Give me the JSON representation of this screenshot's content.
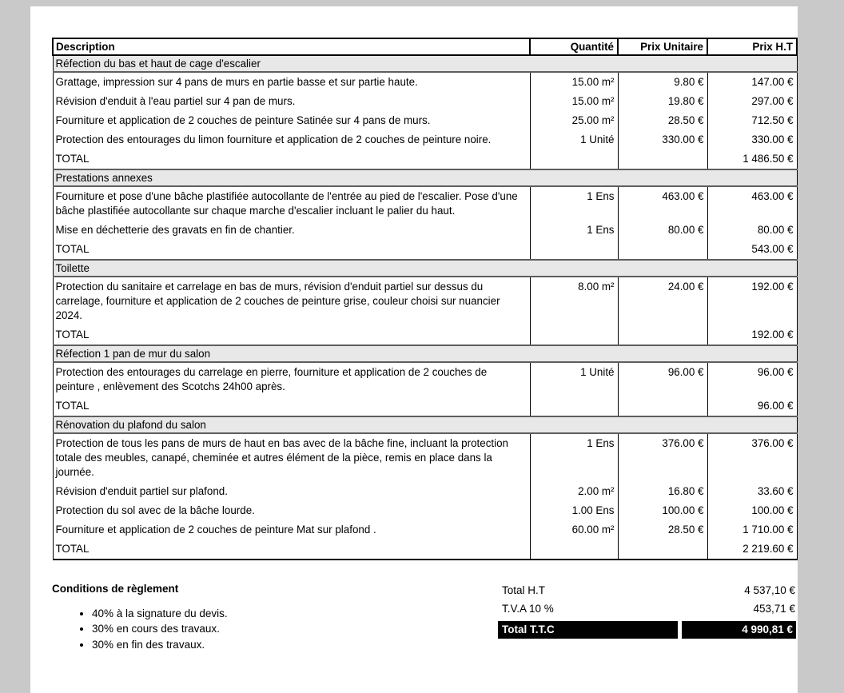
{
  "table": {
    "headers": [
      "Description",
      "Quantité",
      "Prix Unitaire",
      "Prix H.T"
    ],
    "sections": [
      {
        "title": "Réfection du bas et haut de cage d'escalier",
        "rows": [
          {
            "desc": "Grattage, impression sur 4 pans de murs en partie basse et sur partie haute.",
            "qty": "15.00 m²",
            "pu": "9.80 €",
            "ht": "147.00 €"
          },
          {
            "desc": "Révision d'enduit à l'eau partiel sur 4 pan de murs.",
            "qty": "15.00 m²",
            "pu": "19.80 €",
            "ht": "297.00 €"
          },
          {
            "desc": "Fourniture et application de 2 couches de peinture Satinée sur 4 pans de murs.",
            "qty": "25.00 m²",
            "pu": "28.50 €",
            "ht": "712.50 €"
          },
          {
            "desc": "Protection des entourages du limon fourniture et application de 2 couches de peinture noire.",
            "qty": "1 Unité",
            "pu": "330.00 €",
            "ht": "330.00 €"
          }
        ],
        "total_label": "TOTAL",
        "total_value": "1 486.50 €"
      },
      {
        "title": "Prestations annexes",
        "rows": [
          {
            "desc": "Fourniture et pose d'une bâche plastifiée autocollante de l'entrée au pied de l'escalier. Pose d'une bâche plastifiée autocollante sur chaque marche d'escalier incluant le palier du haut.",
            "qty": "1 Ens",
            "pu": "463.00 €",
            "ht": "463.00 €"
          },
          {
            "desc": "Mise en déchetterie des gravats en fin de chantier.",
            "qty": "1 Ens",
            "pu": "80.00 €",
            "ht": "80.00 €"
          }
        ],
        "total_label": "TOTAL",
        "total_value": "543.00 €"
      },
      {
        "title": "Toilette",
        "rows": [
          {
            "desc": "Protection du sanitaire et carrelage en bas de murs, révision d'enduit partiel sur dessus du carrelage, fourniture et application de 2 couches de peinture grise, couleur choisi sur nuancier 2024.",
            "qty": "8.00 m²",
            "pu": "24.00 €",
            "ht": "192.00 €"
          }
        ],
        "total_label": "TOTAL",
        "total_value": "192.00 €"
      },
      {
        "title": "Réfection 1 pan de mur du salon",
        "rows": [
          {
            "desc": "Protection des entourages du carrelage en pierre, fourniture et application de 2 couches de peinture , enlèvement des Scotchs 24h00 après.",
            "qty": "1 Unité",
            "pu": "96.00 €",
            "ht": "96.00 €"
          }
        ],
        "total_label": "TOTAL",
        "total_value": "96.00 €"
      },
      {
        "title": "Rénovation du plafond du salon",
        "rows": [
          {
            "desc": "Protection de tous les pans de murs de haut en bas avec de la bâche fine, incluant la protection totale des meubles, canapé, cheminée et autres élément de la pièce, remis en place dans la journée.",
            "qty": "1 Ens",
            "pu": "376.00 €",
            "ht": "376.00 €"
          },
          {
            "desc": "Révision d'enduit partiel sur plafond.",
            "qty": "2.00 m²",
            "pu": "16.80 €",
            "ht": "33.60 €"
          },
          {
            "desc": "Protection du sol avec de la bâche lourde.",
            "qty": "1.00 Ens",
            "pu": "100.00 €",
            "ht": "100.00 €"
          },
          {
            "desc": "Fourniture et application de 2 couches de peinture Mat sur plafond .",
            "qty": "60.00 m²",
            "pu": "28.50 €",
            "ht": "1 710.00 €"
          }
        ],
        "total_label": "TOTAL",
        "total_value": "2 219.60 €"
      }
    ]
  },
  "footer": {
    "conditions_title": "Conditions de règlement",
    "conditions": [
      "40% à la signature du devis.",
      "30% en cours des travaux.",
      "30% en fin des travaux."
    ],
    "total_ht": {
      "label": "Total H.T",
      "value": "4 537,10 €"
    },
    "tva": {
      "label": "T.V.A 10 %",
      "value": "453,71 €"
    },
    "total_ttc": {
      "label": "Total T.T.C",
      "value": "4 990,81 €"
    }
  }
}
